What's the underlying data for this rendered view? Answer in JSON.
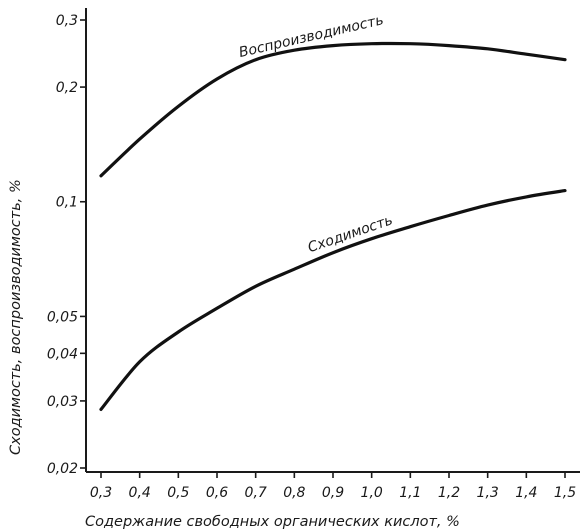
{
  "chart_data": {
    "type": "line",
    "xlabel": "Содержание свободных органических кислот, %",
    "ylabel": "Сходимость, воспроизводимость, %",
    "x_scale": "linear",
    "y_scale": "log",
    "xlim": [
      0.3,
      1.5
    ],
    "ylim": [
      0.02,
      0.3
    ],
    "x_ticks": [
      0.3,
      0.4,
      0.5,
      0.6,
      0.7,
      0.8,
      0.9,
      1.0,
      1.1,
      1.2,
      1.3,
      1.4,
      1.5
    ],
    "x_tick_labels": [
      "0,3",
      "0,4",
      "0,5",
      "0,6",
      "0,7",
      "0,8",
      "0,9",
      "1,0",
      "1,1",
      "1,2",
      "1,3",
      "1,4",
      "1,5"
    ],
    "y_ticks": [
      0.02,
      0.03,
      0.04,
      0.05,
      0.1,
      0.2,
      0.3
    ],
    "y_tick_labels": [
      "0,02",
      "0,03",
      "0,04",
      "0,05",
      "0,1",
      "0,2",
      "0,3"
    ],
    "grid": false,
    "series": [
      {
        "name": "Воспроизводимость",
        "x": [
          0.3,
          0.4,
          0.5,
          0.6,
          0.7,
          0.8,
          0.9,
          1.0,
          1.1,
          1.2,
          1.3,
          1.4,
          1.5
        ],
        "values": [
          0.117,
          0.146,
          0.178,
          0.21,
          0.236,
          0.25,
          0.257,
          0.26,
          0.26,
          0.257,
          0.252,
          0.244,
          0.236
        ]
      },
      {
        "name": "Сходимость",
        "x": [
          0.3,
          0.4,
          0.5,
          0.6,
          0.7,
          0.8,
          0.9,
          1.0,
          1.1,
          1.2,
          1.3,
          1.4,
          1.5
        ],
        "values": [
          0.0285,
          0.038,
          0.0455,
          0.0525,
          0.06,
          0.0665,
          0.0735,
          0.08,
          0.086,
          0.092,
          0.098,
          0.103,
          0.107
        ]
      }
    ]
  }
}
